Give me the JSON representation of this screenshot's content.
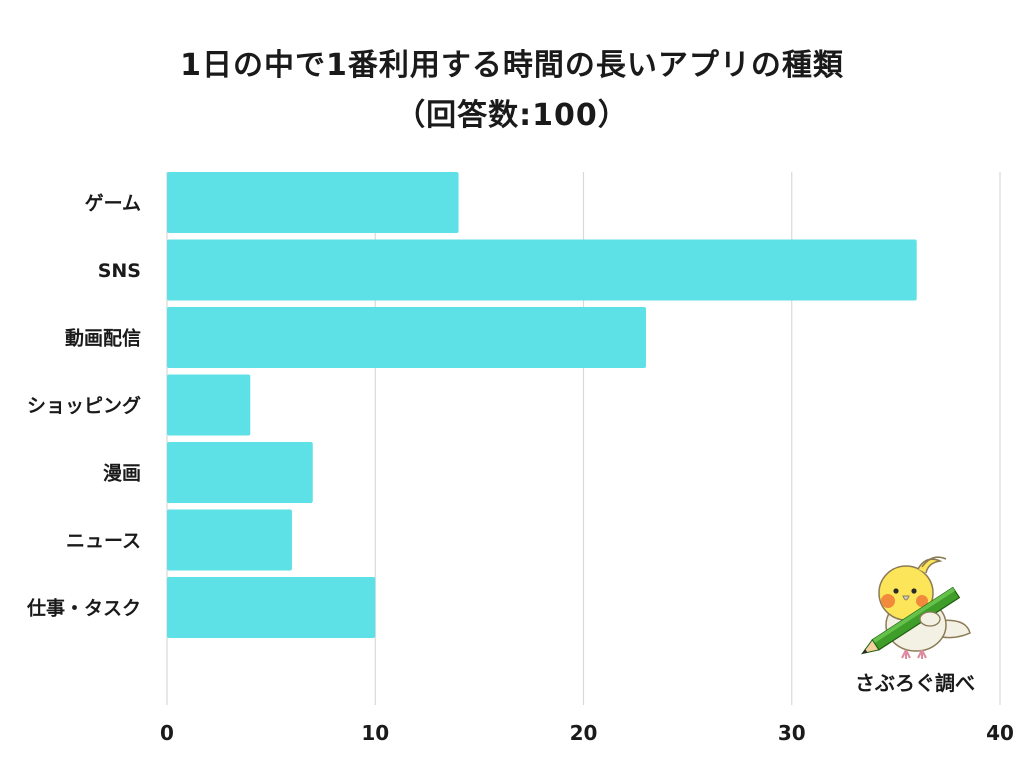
{
  "title_line1": "1日の中で1番利用する時間の長いアプリの種類",
  "title_line2": "（回答数:100）",
  "credit": "さぶろぐ調べ",
  "colors": {
    "bar": "#5ee1e6",
    "grid": "#d9d9d9",
    "text": "#1a1a1a"
  },
  "mascot": {
    "icon": "cockatiel-bird-with-pencil-icon"
  },
  "chart_data": {
    "type": "bar",
    "orientation": "horizontal",
    "categories": [
      "ゲーム",
      "SNS",
      "動画配信",
      "ショッピング",
      "漫画",
      "ニュース",
      "仕事・タスク"
    ],
    "values": [
      14,
      36,
      23,
      4,
      7,
      6,
      10
    ],
    "xlim": [
      0,
      40
    ],
    "xticks": [
      0,
      10,
      20,
      30,
      40
    ],
    "grid": true,
    "legend": "none"
  }
}
